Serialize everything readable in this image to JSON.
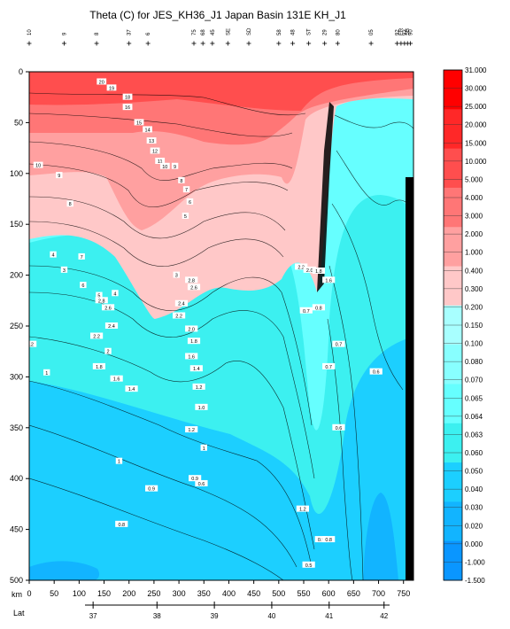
{
  "chart_data": {
    "type": "heatmap",
    "title": "Theta (C) for JES_KH36_J1 Japan Basin 131E KH_J1",
    "xlabel": "km",
    "lat_label": "Lat",
    "ylim": [
      500,
      0
    ],
    "xlim": [
      0,
      770
    ],
    "y_ticks": [
      0,
      50,
      100,
      150,
      200,
      250,
      300,
      350,
      400,
      450,
      500
    ],
    "x_ticks": [
      0,
      50,
      100,
      150,
      200,
      250,
      300,
      350,
      400,
      450,
      500,
      550,
      600,
      650,
      700,
      750
    ],
    "lat_ticks": [
      {
        "label": "37",
        "km": 128
      },
      {
        "label": "38",
        "km": 256
      },
      {
        "label": "39",
        "km": 371
      },
      {
        "label": "40",
        "km": 486
      },
      {
        "label": "41",
        "km": 601
      },
      {
        "label": "42",
        "km": 711
      }
    ],
    "stations": [
      {
        "km": 0,
        "label": "10"
      },
      {
        "km": 70,
        "label": "9"
      },
      {
        "km": 135,
        "label": "8"
      },
      {
        "km": 200,
        "label": "37"
      },
      {
        "km": 238,
        "label": "6"
      },
      {
        "km": 330,
        "label": "75"
      },
      {
        "km": 348,
        "label": "68"
      },
      {
        "km": 367,
        "label": "45"
      },
      {
        "km": 398,
        "label": "SE"
      },
      {
        "km": 440,
        "label": "SD"
      },
      {
        "km": 500,
        "label": "58"
      },
      {
        "km": 528,
        "label": "48"
      },
      {
        "km": 560,
        "label": "ST"
      },
      {
        "km": 592,
        "label": "29"
      },
      {
        "km": 618,
        "label": "80"
      },
      {
        "km": 685,
        "label": "05"
      },
      {
        "km": 737,
        "label": "92"
      },
      {
        "km": 745,
        "label": "ER"
      },
      {
        "km": 752,
        "label": "92"
      },
      {
        "km": 758,
        "label": "SB"
      },
      {
        "km": 764,
        "label": "90"
      }
    ],
    "colorbar": {
      "levels": [
        "31.000",
        "30.000",
        "25.000",
        "20.000",
        "15.000",
        "10.000",
        "5.000",
        "4.000",
        "3.000",
        "2.000",
        "1.000",
        "0.400",
        "0.300",
        "0.200",
        "0.150",
        "0.100",
        "0.080",
        "0.070",
        "0.065",
        "0.064",
        "0.063",
        "0.060",
        "0.050",
        "0.040",
        "0.030",
        "0.020",
        "0.000",
        "-1.000",
        "-1.500"
      ],
      "bands": [
        {
          "value": 30.5,
          "color": "#ff0000"
        },
        {
          "value": 27.5,
          "color": "#ff2828"
        },
        {
          "value": 22.5,
          "color": "#ff4e4e"
        },
        {
          "value": 17.5,
          "color": "#ff7676"
        },
        {
          "value": 12.5,
          "color": "#ffa0a0"
        },
        {
          "value": 7.5,
          "color": "#ffc8c8"
        },
        {
          "value": 3.5,
          "color": "#a8ffff"
        },
        {
          "value": 2.5,
          "color": "#88ffff"
        },
        {
          "value": 1.5,
          "color": "#66ffff"
        },
        {
          "value": 0.7,
          "color": "#3cf0f0"
        },
        {
          "value": 0.2,
          "color": "#1ccfff"
        },
        {
          "value": 0.05,
          "color": "#12b4ff"
        },
        {
          "value": -0.5,
          "color": "#0a96ff"
        }
      ]
    },
    "contour_labels": [
      {
        "km": 145,
        "depth": 10,
        "label": "20"
      },
      {
        "km": 165,
        "depth": 16,
        "label": "19"
      },
      {
        "km": 197,
        "depth": 25,
        "label": "18"
      },
      {
        "km": 197,
        "depth": 35,
        "label": "16"
      },
      {
        "km": 220,
        "depth": 50,
        "label": "15"
      },
      {
        "km": 237,
        "depth": 57,
        "label": "14"
      },
      {
        "km": 245,
        "depth": 68,
        "label": "13"
      },
      {
        "km": 252,
        "depth": 78,
        "label": "12"
      },
      {
        "km": 262,
        "depth": 88,
        "label": "11"
      },
      {
        "km": 272,
        "depth": 93,
        "label": "10"
      },
      {
        "km": 292,
        "depth": 93,
        "label": "9"
      },
      {
        "km": 18,
        "depth": 92,
        "label": "10"
      },
      {
        "km": 60,
        "depth": 102,
        "label": "9"
      },
      {
        "km": 305,
        "depth": 107,
        "label": "8"
      },
      {
        "km": 315,
        "depth": 116,
        "label": "7"
      },
      {
        "km": 322,
        "depth": 128,
        "label": "6"
      },
      {
        "km": 313,
        "depth": 142,
        "label": "5"
      },
      {
        "km": 82,
        "depth": 130,
        "label": "8"
      },
      {
        "km": 105,
        "depth": 182,
        "label": "7"
      },
      {
        "km": 48,
        "depth": 180,
        "label": "4"
      },
      {
        "km": 70,
        "depth": 195,
        "label": "3"
      },
      {
        "km": 108,
        "depth": 210,
        "label": "6"
      },
      {
        "km": 140,
        "depth": 220,
        "label": "5"
      },
      {
        "km": 172,
        "depth": 218,
        "label": "4"
      },
      {
        "km": 295,
        "depth": 200,
        "label": "3"
      },
      {
        "km": 145,
        "depth": 225,
        "label": "2.8"
      },
      {
        "km": 158,
        "depth": 232,
        "label": "2.6"
      },
      {
        "km": 165,
        "depth": 250,
        "label": "2.4"
      },
      {
        "km": 135,
        "depth": 260,
        "label": "2.2"
      },
      {
        "km": 158,
        "depth": 275,
        "label": "2"
      },
      {
        "km": 140,
        "depth": 290,
        "label": "1.8"
      },
      {
        "km": 175,
        "depth": 302,
        "label": "1.6"
      },
      {
        "km": 205,
        "depth": 312,
        "label": "1.4"
      },
      {
        "km": 325,
        "depth": 205,
        "label": "2.8"
      },
      {
        "km": 330,
        "depth": 212,
        "label": "2.6"
      },
      {
        "km": 305,
        "depth": 228,
        "label": "2.4"
      },
      {
        "km": 300,
        "depth": 240,
        "label": "2.2"
      },
      {
        "km": 325,
        "depth": 253,
        "label": "2.0"
      },
      {
        "km": 330,
        "depth": 265,
        "label": "1.8"
      },
      {
        "km": 325,
        "depth": 280,
        "label": "1.6"
      },
      {
        "km": 335,
        "depth": 292,
        "label": "1.4"
      },
      {
        "km": 340,
        "depth": 310,
        "label": "1.2"
      },
      {
        "km": 345,
        "depth": 330,
        "label": "1.0"
      },
      {
        "km": 2,
        "depth": 268,
        "label": "1.2"
      },
      {
        "km": 35,
        "depth": 296,
        "label": "1"
      },
      {
        "km": 180,
        "depth": 383,
        "label": "1"
      },
      {
        "km": 325,
        "depth": 352,
        "label": "1.2"
      },
      {
        "km": 350,
        "depth": 370,
        "label": "1"
      },
      {
        "km": 332,
        "depth": 400,
        "label": "0.9"
      },
      {
        "km": 245,
        "depth": 410,
        "label": "0.9"
      },
      {
        "km": 185,
        "depth": 445,
        "label": "0.8"
      },
      {
        "km": 345,
        "depth": 405,
        "label": "0.6"
      },
      {
        "km": 548,
        "depth": 430,
        "label": "1.2"
      },
      {
        "km": 585,
        "depth": 460,
        "label": "0.9"
      },
      {
        "km": 600,
        "depth": 460,
        "label": "0.8"
      },
      {
        "km": 560,
        "depth": 485,
        "label": "0.5"
      },
      {
        "km": 600,
        "depth": 290,
        "label": "0.7"
      },
      {
        "km": 620,
        "depth": 268,
        "label": "0.7"
      },
      {
        "km": 695,
        "depth": 295,
        "label": "0.6"
      },
      {
        "km": 620,
        "depth": 350,
        "label": "0.6"
      },
      {
        "km": 555,
        "depth": 235,
        "label": "0.7"
      },
      {
        "km": 580,
        "depth": 232,
        "label": "0.8"
      },
      {
        "km": 545,
        "depth": 192,
        "label": "2.2"
      },
      {
        "km": 562,
        "depth": 195,
        "label": "2.0"
      },
      {
        "km": 580,
        "depth": 196,
        "label": "1.8"
      },
      {
        "km": 600,
        "depth": 205,
        "label": "1.6"
      }
    ]
  }
}
